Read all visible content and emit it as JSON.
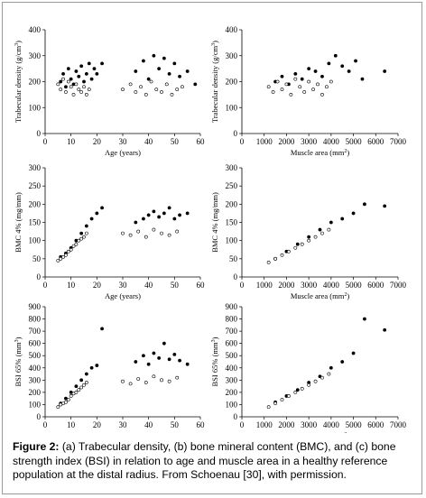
{
  "caption": {
    "label": "Figure 2:",
    "text": " (a) Trabecular density, (b) bone mineral content (BMC), and (c) bone strength index (BSI) in relation to age and muscle area in a healthy reference population at the distal radius. From Schoenau [30], with permission."
  },
  "colors": {
    "axis": "#000000",
    "filled_marker": "#000000",
    "open_marker": "#000000",
    "frame": "#9a9a9a"
  },
  "chart_data": [
    {
      "id": "trab-age",
      "type": "scatter",
      "xlabel": "Age (years)",
      "ylabel": "Trabecular density (g/cm3)",
      "xlim": [
        0,
        60
      ],
      "ylim": [
        0,
        400
      ],
      "xticks": [
        0,
        10,
        20,
        30,
        40,
        50,
        60
      ],
      "yticks": [
        0,
        100,
        200,
        300,
        400
      ],
      "grid": false,
      "legend": "none",
      "series": [
        {
          "marker": "filled",
          "x": [
            6,
            7,
            8,
            9,
            10,
            11,
            12,
            13,
            14,
            15,
            16,
            17,
            18,
            19,
            20,
            22,
            35,
            38,
            40,
            42,
            44,
            46,
            48,
            50,
            52,
            55,
            58
          ],
          "y": [
            200,
            230,
            180,
            250,
            210,
            190,
            240,
            220,
            260,
            200,
            230,
            270,
            210,
            250,
            230,
            270,
            240,
            280,
            210,
            300,
            250,
            290,
            230,
            270,
            220,
            240,
            190
          ]
        },
        {
          "marker": "open",
          "x": [
            5,
            6,
            7,
            8,
            9,
            10,
            11,
            12,
            13,
            14,
            15,
            16,
            17,
            30,
            33,
            35,
            37,
            39,
            41,
            43,
            45,
            47,
            49,
            51,
            53
          ],
          "y": [
            190,
            170,
            210,
            160,
            200,
            180,
            150,
            190,
            170,
            160,
            180,
            150,
            170,
            170,
            190,
            160,
            180,
            150,
            200,
            170,
            160,
            190,
            150,
            170,
            180
          ]
        }
      ]
    },
    {
      "id": "trab-muscle",
      "type": "scatter",
      "xlabel": "Muscle area (mm2)",
      "ylabel": "Trabecular density (g/cm3)",
      "xlim": [
        0,
        7000
      ],
      "ylim": [
        0,
        400
      ],
      "xticks": [
        0,
        1000,
        2000,
        3000,
        4000,
        5000,
        6000,
        7000
      ],
      "yticks": [
        0,
        100,
        200,
        300,
        400
      ],
      "grid": false,
      "legend": "none",
      "series": [
        {
          "marker": "filled",
          "x": [
            1500,
            1800,
            2100,
            2400,
            2700,
            3000,
            3300,
            3600,
            3900,
            4200,
            4500,
            4800,
            5100,
            5400,
            6400
          ],
          "y": [
            200,
            220,
            190,
            230,
            210,
            250,
            240,
            220,
            270,
            300,
            260,
            240,
            280,
            210,
            240
          ]
        },
        {
          "marker": "open",
          "x": [
            1200,
            1400,
            1600,
            1800,
            2000,
            2200,
            2400,
            2600,
            2800,
            3000,
            3200,
            3400,
            3600,
            3800,
            4000
          ],
          "y": [
            180,
            160,
            200,
            170,
            190,
            150,
            210,
            180,
            160,
            200,
            170,
            190,
            150,
            180,
            200
          ]
        }
      ]
    },
    {
      "id": "bmc-age",
      "type": "scatter",
      "xlabel": "Age (years)",
      "ylabel": "BMC 4% (mg/mm)",
      "xlim": [
        0,
        60
      ],
      "ylim": [
        0,
        300
      ],
      "xticks": [
        0,
        10,
        20,
        30,
        40,
        50,
        60
      ],
      "yticks": [
        0,
        50,
        100,
        150,
        200,
        250,
        300
      ],
      "grid": false,
      "legend": "none",
      "series": [
        {
          "marker": "filled",
          "x": [
            6,
            8,
            10,
            12,
            14,
            16,
            18,
            20,
            22,
            35,
            38,
            40,
            42,
            44,
            46,
            48,
            50,
            52,
            55
          ],
          "y": [
            55,
            65,
            80,
            100,
            120,
            140,
            160,
            175,
            190,
            150,
            160,
            170,
            180,
            165,
            175,
            190,
            160,
            170,
            175
          ]
        },
        {
          "marker": "open",
          "x": [
            5,
            6,
            7,
            8,
            9,
            10,
            11,
            12,
            13,
            14,
            15,
            16,
            30,
            33,
            36,
            39,
            42,
            45,
            48,
            51
          ],
          "y": [
            45,
            50,
            55,
            60,
            70,
            75,
            85,
            90,
            100,
            105,
            110,
            120,
            120,
            115,
            125,
            110,
            130,
            120,
            115,
            125
          ]
        }
      ]
    },
    {
      "id": "bmc-muscle",
      "type": "scatter",
      "xlabel": "Muscle area (mm2)",
      "ylabel": "BMC 4% (mg/mm)",
      "xlim": [
        0,
        7000
      ],
      "ylim": [
        0,
        300
      ],
      "xticks": [
        0,
        1000,
        2000,
        3000,
        4000,
        5000,
        6000,
        7000
      ],
      "yticks": [
        0,
        50,
        100,
        150,
        200,
        250,
        300
      ],
      "grid": false,
      "legend": "none",
      "series": [
        {
          "marker": "filled",
          "x": [
            1500,
            2000,
            2500,
            3000,
            3500,
            4000,
            4500,
            5000,
            5500,
            6400
          ],
          "y": [
            50,
            70,
            90,
            110,
            130,
            150,
            160,
            175,
            200,
            195
          ]
        },
        {
          "marker": "open",
          "x": [
            1200,
            1500,
            1800,
            2100,
            2400,
            2700,
            3000,
            3300,
            3600,
            3900
          ],
          "y": [
            40,
            50,
            60,
            70,
            80,
            90,
            100,
            110,
            120,
            130
          ]
        }
      ]
    },
    {
      "id": "bsi-age",
      "type": "scatter",
      "xlabel": "Age (years)",
      "ylabel": "BSI 65% (mm3)",
      "xlim": [
        0,
        60
      ],
      "ylim": [
        0,
        900
      ],
      "xticks": [
        0,
        10,
        20,
        30,
        40,
        50,
        60
      ],
      "yticks": [
        0,
        100,
        200,
        300,
        400,
        500,
        600,
        700,
        800,
        900
      ],
      "grid": false,
      "legend": "none",
      "series": [
        {
          "marker": "filled",
          "x": [
            6,
            8,
            10,
            12,
            14,
            16,
            18,
            20,
            22,
            35,
            38,
            40,
            42,
            44,
            46,
            48,
            50,
            52,
            55
          ],
          "y": [
            110,
            150,
            200,
            250,
            300,
            350,
            400,
            420,
            720,
            450,
            500,
            430,
            520,
            480,
            600,
            470,
            510,
            460,
            430
          ]
        },
        {
          "marker": "open",
          "x": [
            5,
            6,
            7,
            8,
            9,
            10,
            11,
            12,
            13,
            14,
            15,
            16,
            30,
            33,
            36,
            39,
            42,
            45,
            48,
            51
          ],
          "y": [
            80,
            100,
            110,
            120,
            140,
            170,
            190,
            200,
            220,
            240,
            260,
            280,
            290,
            270,
            310,
            280,
            330,
            300,
            290,
            320
          ]
        }
      ]
    },
    {
      "id": "bsi-muscle",
      "type": "scatter",
      "xlabel": "Muscle area (mm2)",
      "ylabel": "BSI 65% (mm3)",
      "xlim": [
        0,
        7000
      ],
      "ylim": [
        0,
        900
      ],
      "xticks": [
        0,
        1000,
        2000,
        3000,
        4000,
        5000,
        6000,
        7000
      ],
      "yticks": [
        0,
        100,
        200,
        300,
        400,
        500,
        600,
        700,
        800,
        900
      ],
      "grid": false,
      "legend": "none",
      "series": [
        {
          "marker": "filled",
          "x": [
            1500,
            2000,
            2500,
            3000,
            3500,
            4000,
            4500,
            5000,
            5500,
            6400
          ],
          "y": [
            120,
            170,
            220,
            280,
            330,
            400,
            450,
            520,
            800,
            710
          ]
        },
        {
          "marker": "open",
          "x": [
            1200,
            1500,
            1800,
            2100,
            2400,
            2700,
            3000,
            3300,
            3600,
            3900
          ],
          "y": [
            80,
            110,
            140,
            170,
            200,
            230,
            260,
            290,
            320,
            350
          ]
        }
      ]
    }
  ]
}
